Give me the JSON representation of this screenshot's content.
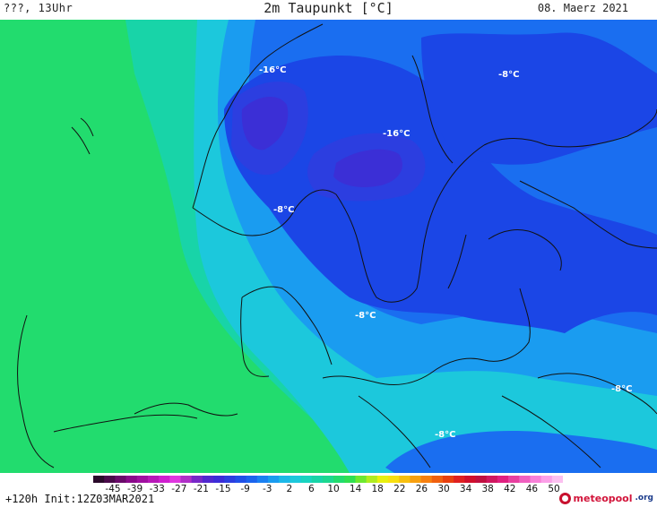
{
  "header": {
    "left": "???, 13Uhr",
    "title": "2m Taupunkt [°C]",
    "right": "08. Maerz 2021"
  },
  "map": {
    "labels": [
      "-16°C",
      "-8°C",
      "-16°C",
      "-8°C",
      "-8°C",
      "-8°C",
      "-8°C"
    ],
    "colors": {
      "green": "#22dc6e",
      "teal": "#18d4a8",
      "cyan": "#1cc8dc",
      "lightblue": "#1a9cf0",
      "blue": "#1a6ef0",
      "deepblue": "#1b46e6",
      "indigo": "#3b2fd6",
      "violet": "#5a2ad0"
    }
  },
  "colorbar": {
    "ticks": [
      "-45",
      "-39",
      "-33",
      "-27",
      "-21",
      "-15",
      "-9",
      "-3",
      "2",
      "6",
      "10",
      "14",
      "18",
      "22",
      "26",
      "30",
      "34",
      "38",
      "42",
      "46",
      "50"
    ],
    "swatches": [
      "#2a0a2a",
      "#4a0a4a",
      "#6a0a6a",
      "#8a0a8a",
      "#a010a0",
      "#b818b8",
      "#d020d0",
      "#e038e0",
      "#b030c8",
      "#7828c8",
      "#5028d0",
      "#3c2cd8",
      "#2c3ee0",
      "#2050e8",
      "#1b64ee",
      "#1a80f2",
      "#1a9cf0",
      "#1cb8e8",
      "#1cc8dc",
      "#18d4c0",
      "#18d4a8",
      "#1cd890",
      "#22dc6e",
      "#30e050",
      "#6ee830",
      "#b0ec20",
      "#e8f010",
      "#f8e010",
      "#f8c010",
      "#f8a010",
      "#f88010",
      "#f06010",
      "#e84010",
      "#e02020",
      "#d0102c",
      "#c01040",
      "#d01860",
      "#e02080",
      "#e840a0",
      "#f060c0",
      "#f880d8",
      "#fca0e8",
      "#fcc0f0"
    ]
  },
  "footer": {
    "run": "+120h Init:12Z03MAR2021",
    "logo_text": "meteopool",
    "logo_tld": ".org"
  }
}
